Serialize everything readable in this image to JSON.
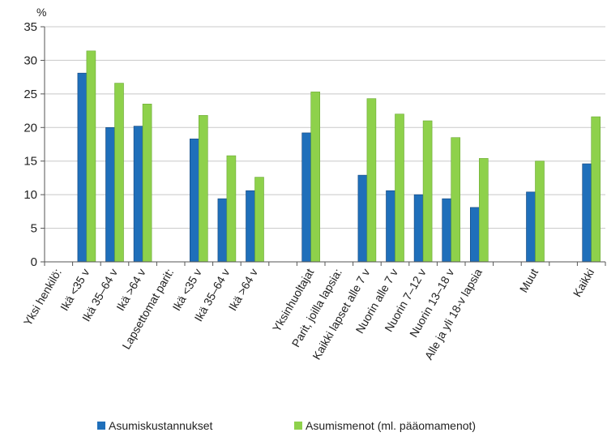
{
  "chart_data": {
    "type": "bar",
    "y_unit_label": "%",
    "ylim": [
      0,
      35
    ],
    "yticks": [
      0,
      5,
      10,
      15,
      20,
      25,
      30,
      35
    ],
    "grid": true,
    "legend_position": "bottom",
    "categories": [
      "Yksi henkilö:",
      "Ikä <35 v",
      "Ikä 35–64 v",
      "Ikä >64 v",
      "Lapsettomat parit:",
      "Ikä <35 v",
      "Ikä 35–64 v",
      "Ikä >64 v",
      "",
      "Yksinhuoltajat",
      "Parit, joilla lapsia:",
      "Kaikki lapset alle 7 v",
      "Nuorin alle 7 v",
      "Nuorin 7–12 v",
      "Nuorin 13–18 v",
      "Alle ja yli 18-v lapsia",
      "",
      "Muut",
      "",
      "Kaikki"
    ],
    "series": [
      {
        "name": "Asumiskustannukset",
        "color": "#1f6fba",
        "values": [
          null,
          28.1,
          20.0,
          20.2,
          null,
          18.3,
          9.4,
          10.6,
          null,
          19.2,
          null,
          12.9,
          10.6,
          10.0,
          9.4,
          8.1,
          null,
          10.4,
          null,
          14.6
        ]
      },
      {
        "name": "Asumismenot (ml. pääomamenot)",
        "color": "#8ed14b",
        "values": [
          null,
          31.4,
          26.6,
          23.5,
          null,
          21.8,
          15.8,
          12.6,
          null,
          25.3,
          null,
          24.3,
          22.0,
          21.0,
          18.5,
          15.4,
          null,
          15.0,
          null,
          21.6
        ]
      }
    ]
  }
}
